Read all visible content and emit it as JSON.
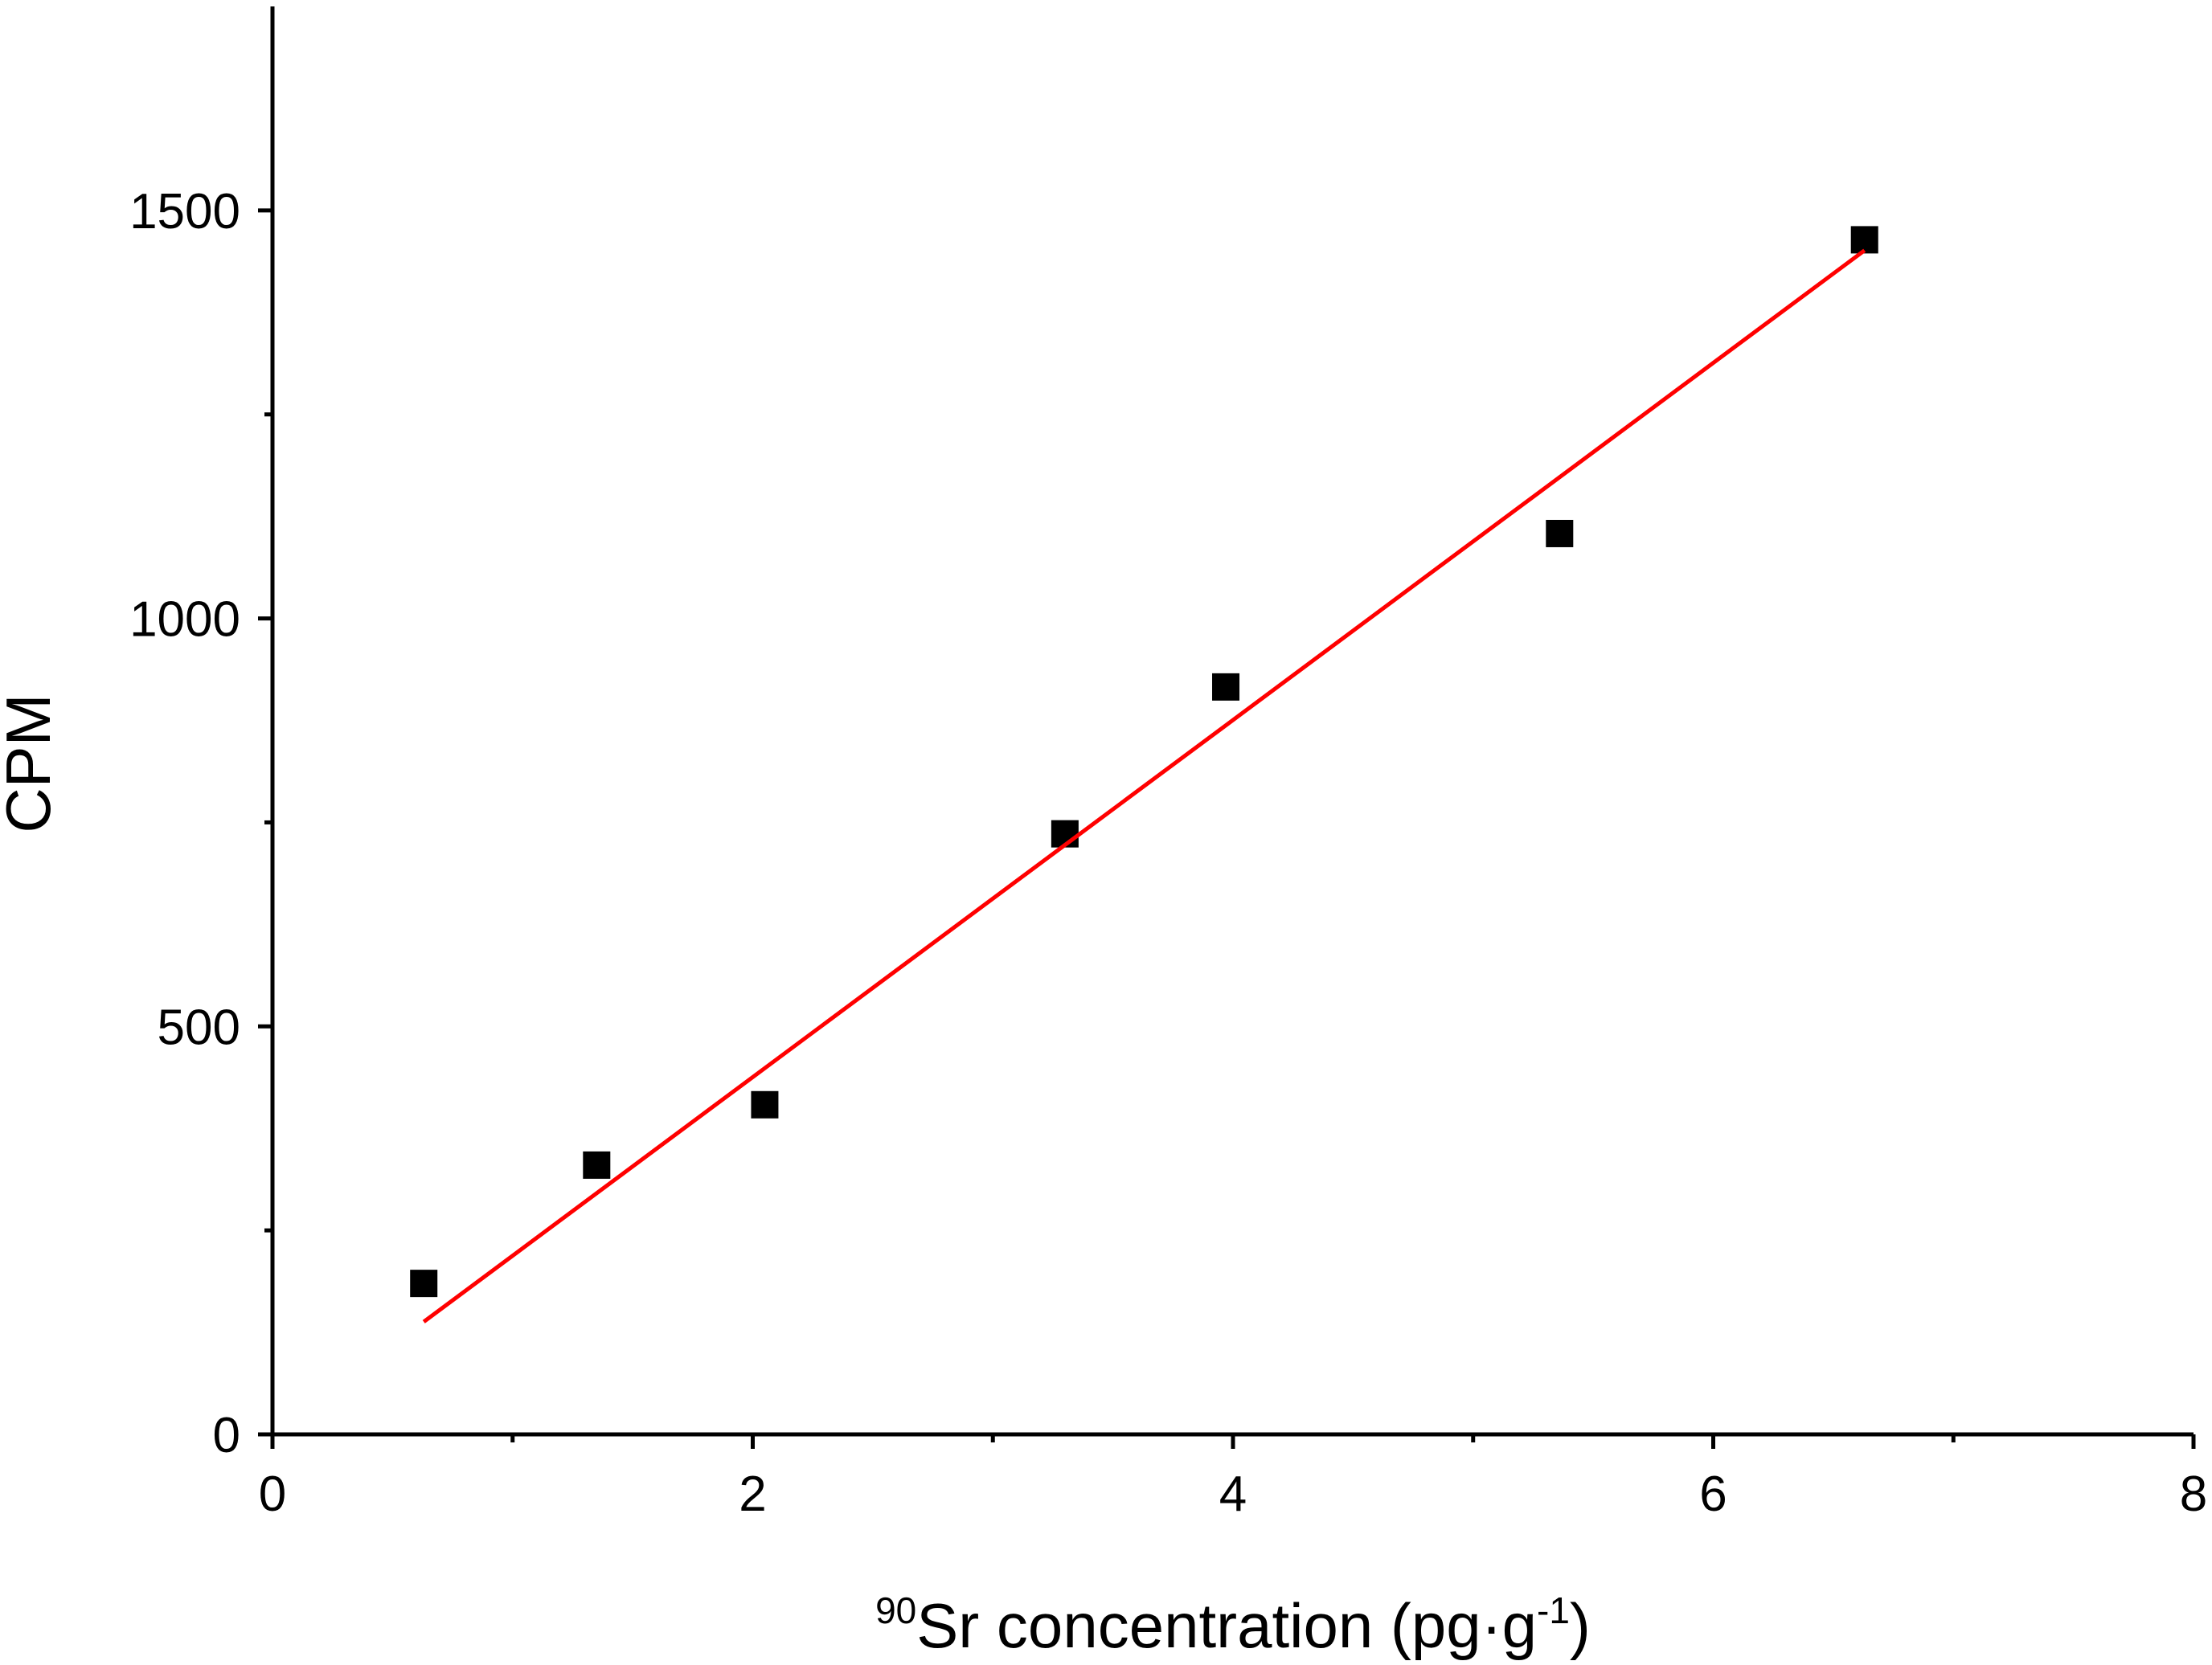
{
  "chart_data": {
    "type": "scatter",
    "title": "",
    "xlabel": {
      "sup": "90",
      "main": "Sr concentration (pg·g",
      "sup2": "-1",
      "tail": ")"
    },
    "ylabel": "CPM",
    "xlim": [
      0,
      8
    ],
    "ylim": [
      0,
      1750
    ],
    "x_major_ticks": [
      0,
      2,
      4,
      6,
      8
    ],
    "x_minor_ticks": [
      1,
      3,
      5,
      7
    ],
    "y_major_ticks": [
      0,
      500,
      1000,
      1500
    ],
    "y_minor_ticks": [
      250,
      750,
      1250
    ],
    "x_tick_labels": [
      "0",
      "2",
      "4",
      "6",
      "8"
    ],
    "y_tick_labels": [
      "0",
      "500",
      "1000",
      "1500"
    ],
    "grid": false,
    "series": [
      {
        "type": "scatter",
        "marker": "square",
        "color": "#000000",
        "x": [
          0.63,
          1.35,
          2.05,
          3.3,
          3.97,
          5.36,
          6.63
        ],
        "y": [
          185,
          330,
          404,
          736,
          916,
          1104,
          1464
        ]
      },
      {
        "type": "line",
        "color": "#ff0000",
        "x": [
          0.63,
          6.63
        ],
        "y": [
          138,
          1451
        ]
      }
    ]
  }
}
